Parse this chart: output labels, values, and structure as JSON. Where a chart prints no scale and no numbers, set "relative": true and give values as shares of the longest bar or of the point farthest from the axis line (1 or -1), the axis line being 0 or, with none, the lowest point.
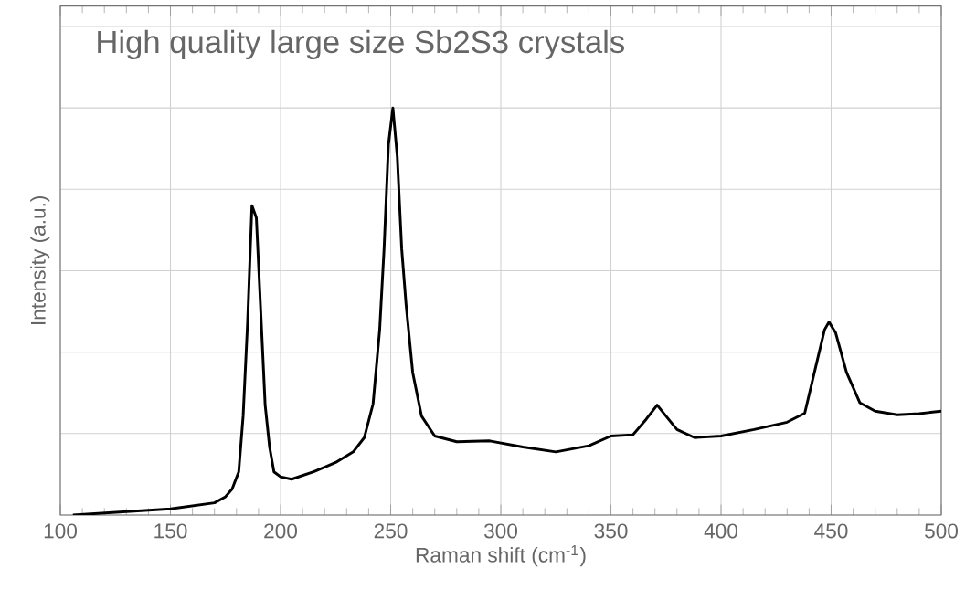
{
  "chart_data": {
    "type": "line",
    "title": "High quality large size Sb2S3 crystals",
    "xlabel": "Raman shift (cm$^{-1}$)",
    "ylabel": "Intensity (a.u.)",
    "relative": true,
    "grid": true,
    "xlim": [
      100,
      500
    ],
    "xticks": [
      100,
      150,
      200,
      250,
      300,
      350,
      400,
      450,
      500
    ],
    "series": [
      {
        "color": "#000000",
        "x": [
          105.7,
          150,
          170,
          175,
          178,
          181,
          183,
          185,
          187,
          189,
          191,
          193,
          195,
          197,
          200,
          205,
          215,
          225,
          233,
          238,
          242,
          245,
          247,
          249,
          251,
          253,
          255,
          257,
          260,
          264,
          270,
          280,
          295,
          310,
          325,
          340,
          350,
          360,
          366,
          371,
          375,
          380,
          388,
          400,
          415,
          430,
          438,
          443,
          447,
          449,
          452,
          457,
          463,
          470,
          480,
          490,
          500
        ],
        "values": [
          0.0,
          0.015,
          0.03,
          0.045,
          0.064,
          0.106,
          0.243,
          0.47,
          0.76,
          0.73,
          0.5,
          0.27,
          0.167,
          0.106,
          0.094,
          0.088,
          0.106,
          0.129,
          0.155,
          0.19,
          0.273,
          0.455,
          0.654,
          0.91,
          1.0,
          0.88,
          0.654,
          0.516,
          0.35,
          0.243,
          0.194,
          0.18,
          0.182,
          0.167,
          0.155,
          0.17,
          0.194,
          0.197,
          0.235,
          0.27,
          0.243,
          0.21,
          0.19,
          0.194,
          0.21,
          0.228,
          0.25,
          0.364,
          0.455,
          0.474,
          0.448,
          0.35,
          0.276,
          0.255,
          0.246,
          0.249,
          0.255
        ]
      }
    ]
  }
}
